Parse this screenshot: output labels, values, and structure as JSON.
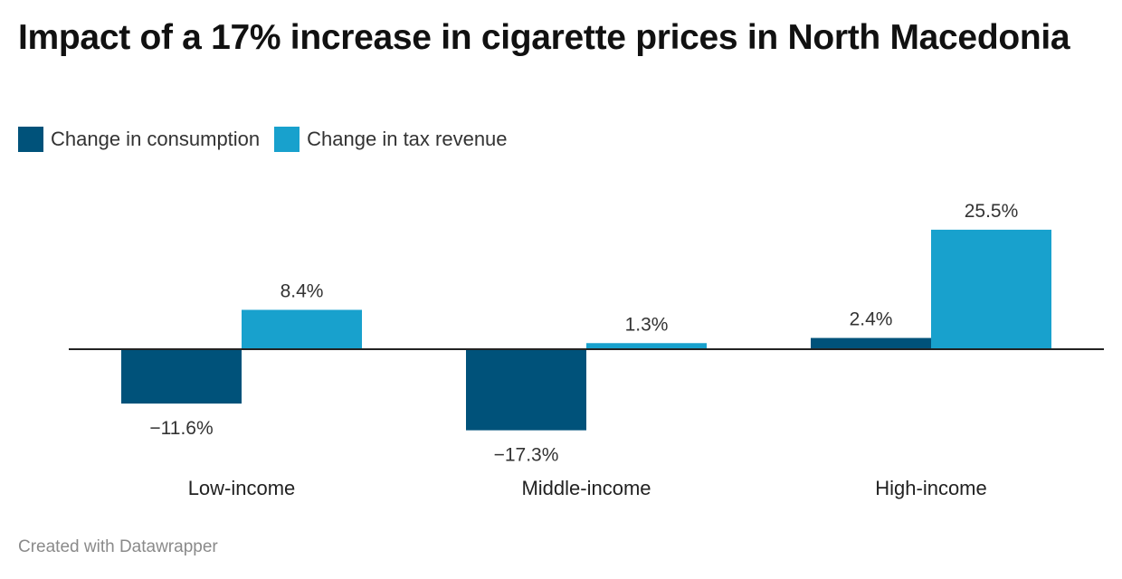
{
  "title": "Impact of a 17% increase in cigarette prices in North Macedonia",
  "legend": [
    {
      "label": "Change in consumption",
      "color": "#00527a"
    },
    {
      "label": "Change in tax revenue",
      "color": "#18a1cd"
    }
  ],
  "footer": "Created with Datawrapper",
  "chart_data": {
    "type": "bar",
    "categories": [
      "Low-income",
      "Middle-income",
      "High-income"
    ],
    "series": [
      {
        "name": "Change in consumption",
        "values": [
          -11.6,
          -17.3,
          2.4
        ],
        "labels": [
          "−11.6%",
          "−17.3%",
          "2.4%"
        ],
        "color": "#00527a"
      },
      {
        "name": "Change in tax revenue",
        "values": [
          8.4,
          1.3,
          25.5
        ],
        "labels": [
          "8.4%",
          "1.3%",
          "25.5%"
        ],
        "color": "#18a1cd"
      }
    ],
    "title": "Impact of a 17% increase in cigarette prices in North Macedonia",
    "xlabel": "",
    "ylabel": "",
    "ylim": [
      -17.3,
      25.5
    ],
    "grid": false,
    "legend_position": "top-left",
    "unit": "%"
  }
}
